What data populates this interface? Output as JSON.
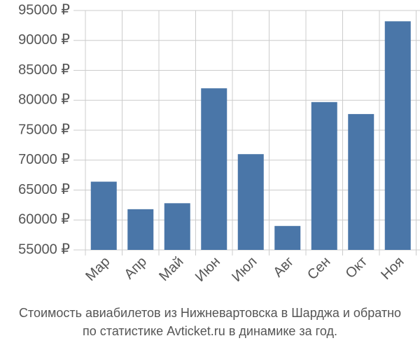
{
  "chart_data": {
    "type": "bar",
    "caption": [
      "Стоимость авиабилетов из Нижневартовска в Шарджа и обратно",
      "по статистике Avticket.ru в динамике за год."
    ],
    "categories": [
      "Мар",
      "Апр",
      "Май",
      "Июн",
      "Июл",
      "Авг",
      "Сен",
      "Окт",
      "Ноя"
    ],
    "values": [
      66400,
      61800,
      62800,
      82000,
      71000,
      59000,
      79700,
      77700,
      93200
    ],
    "color": "#4a76a8",
    "ylim": [
      55000,
      95000
    ],
    "yticks": [
      {
        "value": 55000,
        "label": "55000 ₽"
      },
      {
        "value": 60000,
        "label": "60000 ₽"
      },
      {
        "value": 65000,
        "label": "65000 ₽"
      },
      {
        "value": 70000,
        "label": "70000 ₽"
      },
      {
        "value": 75000,
        "label": "75000 ₽"
      },
      {
        "value": 80000,
        "label": "80000 ₽"
      },
      {
        "value": 85000,
        "label": "85000 ₽"
      },
      {
        "value": 90000,
        "label": "90000 ₽"
      },
      {
        "value": 95000,
        "label": "95000 ₽"
      }
    ],
    "grid": true
  }
}
